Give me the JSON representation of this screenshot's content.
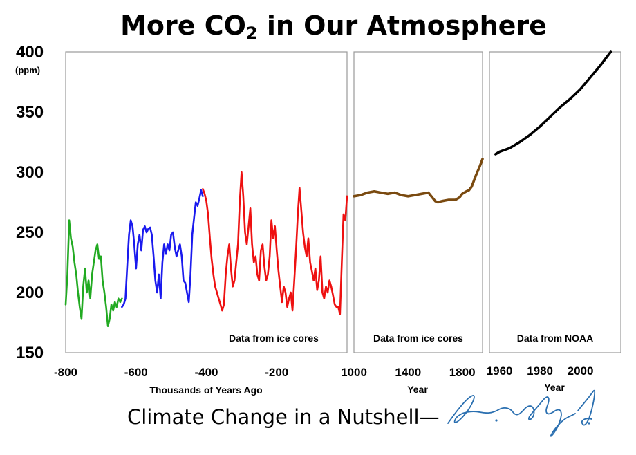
{
  "title": {
    "pre": "More CO",
    "sub": "2",
    "post": " in Our Atmosphere"
  },
  "footer": {
    "text": "Climate Change in a Nutshell—",
    "signature": "Angus A. King, Jr."
  },
  "chart_data": [
    {
      "type": "line",
      "xlabel": "Thousands of Years Ago",
      "xticks": [
        "-800",
        "-600",
        "-400",
        "-200"
      ],
      "xlim": [
        -800,
        0
      ],
      "ylabel": "(ppm)",
      "yticks": [
        "400",
        "350",
        "300",
        "250",
        "200",
        "150"
      ],
      "ylim": [
        150,
        400
      ],
      "annotation": "Data from ice cores",
      "series": [
        {
          "color": "#22aa22",
          "x": [
            -800,
            -795,
            -790,
            -785,
            -780,
            -775,
            -770,
            -765,
            -760,
            -755,
            -750,
            -745,
            -740,
            -735,
            -730,
            -725,
            -720,
            -715,
            -710,
            -705,
            -700,
            -695,
            -690,
            -685,
            -680,
            -675,
            -670,
            -665,
            -660,
            -655,
            -650,
            -645,
            -640
          ],
          "y": [
            190,
            215,
            260,
            245,
            238,
            225,
            215,
            200,
            188,
            178,
            205,
            220,
            200,
            210,
            195,
            215,
            225,
            235,
            240,
            228,
            230,
            210,
            200,
            188,
            172,
            178,
            190,
            185,
            192,
            188,
            195,
            192,
            195
          ]
        },
        {
          "color": "#1a1aee",
          "x": [
            -640,
            -635,
            -630,
            -625,
            -620,
            -615,
            -610,
            -605,
            -600,
            -595,
            -590,
            -585,
            -580,
            -575,
            -570,
            -565,
            -560,
            -555,
            -550,
            -545,
            -540,
            -535,
            -530,
            -525,
            -520,
            -515,
            -510,
            -505,
            -500,
            -495,
            -490,
            -485,
            -480,
            -475,
            -470,
            -465,
            -460,
            -455,
            -450,
            -445,
            -440,
            -435,
            -430,
            -425,
            -420,
            -415,
            -410
          ],
          "y": [
            188,
            190,
            195,
            222,
            248,
            260,
            255,
            240,
            220,
            240,
            248,
            235,
            252,
            255,
            250,
            253,
            254,
            248,
            230,
            210,
            200,
            215,
            195,
            225,
            240,
            232,
            240,
            235,
            248,
            250,
            238,
            230,
            235,
            240,
            230,
            210,
            208,
            200,
            192,
            215,
            248,
            262,
            275,
            272,
            278,
            285,
            280
          ]
        },
        {
          "color": "#ee1111",
          "x": [
            -410,
            -405,
            -400,
            -395,
            -390,
            -385,
            -380,
            -375,
            -370,
            -365,
            -360,
            -355,
            -350,
            -345,
            -340,
            -335,
            -330,
            -325,
            -320,
            -315,
            -310,
            -305,
            -300,
            -295,
            -290,
            -285,
            -280,
            -275,
            -270,
            -265,
            -260,
            -255,
            -250,
            -245,
            -240,
            -235,
            -230,
            -225,
            -220,
            -215,
            -210,
            -205,
            -200,
            -195,
            -190,
            -185,
            -180,
            -175,
            -170,
            -165,
            -160,
            -155,
            -150,
            -145,
            -140,
            -135,
            -130,
            -125,
            -120,
            -115,
            -110,
            -105,
            -100,
            -95,
            -90,
            -85,
            -80,
            -75,
            -70,
            -65,
            -60,
            -55,
            -50,
            -45,
            -40,
            -35,
            -30,
            -25,
            -20,
            -15,
            -10,
            -5,
            0
          ],
          "y": [
            286,
            282,
            276,
            265,
            245,
            228,
            215,
            205,
            200,
            195,
            190,
            185,
            190,
            215,
            230,
            240,
            220,
            205,
            210,
            225,
            240,
            275,
            300,
            280,
            250,
            240,
            255,
            270,
            240,
            225,
            230,
            215,
            210,
            235,
            240,
            222,
            210,
            215,
            230,
            260,
            245,
            255,
            235,
            218,
            205,
            192,
            205,
            200,
            188,
            195,
            200,
            185,
            210,
            235,
            265,
            287,
            268,
            250,
            238,
            230,
            245,
            225,
            218,
            210,
            220,
            202,
            210,
            230,
            200,
            195,
            205,
            200,
            210,
            205,
            198,
            190,
            188,
            188,
            182,
            225,
            265,
            260,
            280
          ]
        }
      ]
    },
    {
      "type": "line",
      "xlabel": "Year",
      "xticks": [
        "1000",
        "1400",
        "1800"
      ],
      "xlim": [
        1000,
        1950
      ],
      "ylim": [
        150,
        400
      ],
      "annotation": "Data from ice cores",
      "series": [
        {
          "color": "#7a4a10",
          "x": [
            1000,
            1050,
            1100,
            1150,
            1200,
            1250,
            1300,
            1350,
            1400,
            1450,
            1500,
            1550,
            1600,
            1620,
            1650,
            1700,
            1750,
            1780,
            1800,
            1830,
            1850,
            1870,
            1900,
            1930,
            1950
          ],
          "y": [
            280,
            281,
            283,
            284,
            283,
            282,
            283,
            281,
            280,
            281,
            282,
            283,
            276,
            275,
            276,
            277,
            277,
            279,
            282,
            284,
            285,
            288,
            297,
            305,
            311
          ]
        }
      ]
    },
    {
      "type": "line",
      "xlabel": "Year",
      "xticks": [
        "1960",
        "1980",
        "2000"
      ],
      "xlim": [
        1955,
        2020
      ],
      "ylim": [
        150,
        400
      ],
      "annotation": "Data from NOAA",
      "series": [
        {
          "color": "#000000",
          "x": [
            1958,
            1960,
            1965,
            1970,
            1975,
            1980,
            1985,
            1990,
            1995,
            2000,
            2005,
            2010,
            2015
          ],
          "y": [
            315,
            317,
            320,
            325,
            331,
            338,
            346,
            354,
            361,
            369,
            379,
            389,
            400
          ]
        }
      ]
    }
  ]
}
